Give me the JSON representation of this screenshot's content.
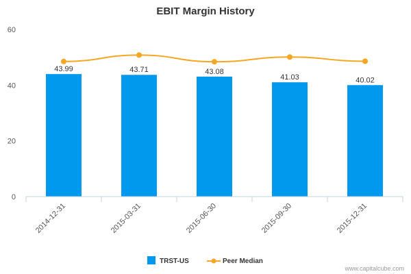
{
  "chart_data": {
    "type": "bar",
    "title": "EBIT Margin History",
    "xlabel": "",
    "ylabel": "",
    "categories": [
      "2014-12-31",
      "2015-03-31",
      "2015-06-30",
      "2015-09-30",
      "2015-12-31"
    ],
    "ylim": [
      0,
      60
    ],
    "yticks": [
      0,
      20,
      40,
      60
    ],
    "grid": false,
    "legend_position": "bottom-center",
    "series": [
      {
        "name": "TRST-US",
        "type": "bar",
        "color": "#0099ee",
        "values": [
          43.99,
          43.71,
          43.08,
          41.03,
          40.02
        ],
        "labels": [
          "43.99",
          "43.71",
          "43.08",
          "41.03",
          "40.02"
        ]
      },
      {
        "name": "Peer Median",
        "type": "line",
        "color": "#f5a623",
        "values": [
          48.5,
          50.8,
          48.4,
          50.1,
          48.6
        ]
      }
    ]
  },
  "credit": "www.capitalcube.com"
}
